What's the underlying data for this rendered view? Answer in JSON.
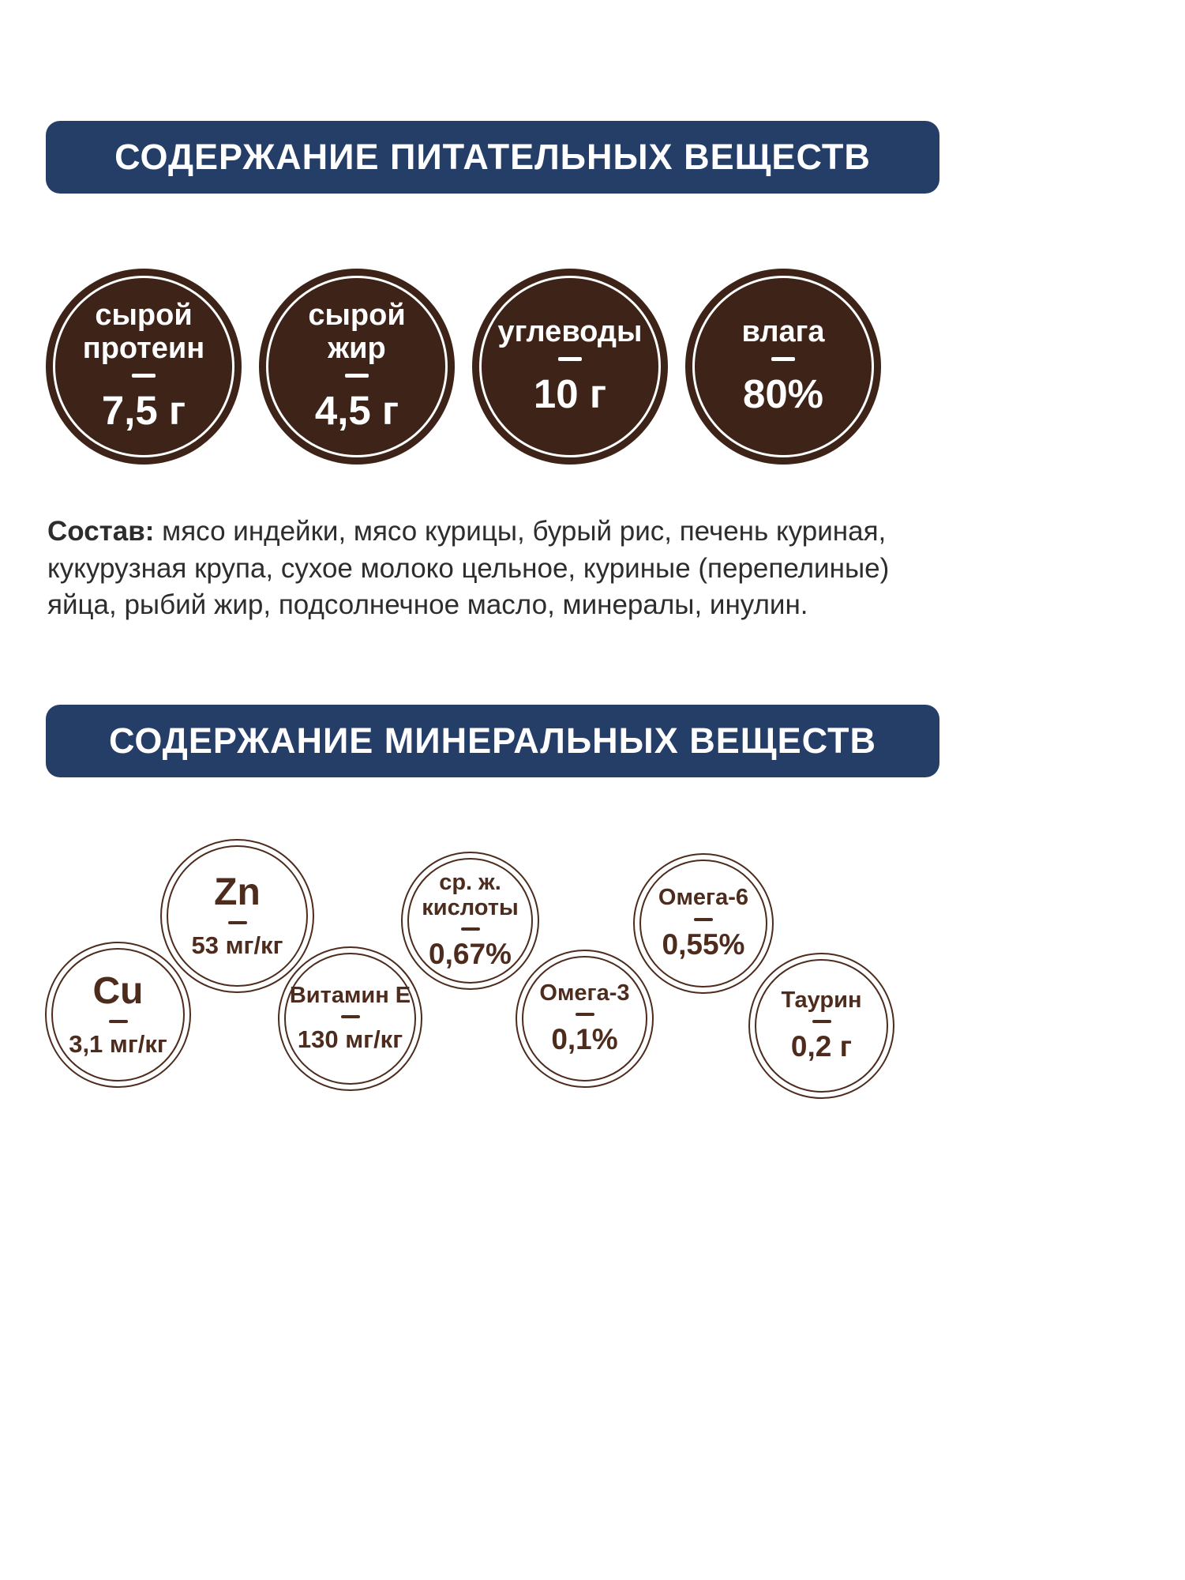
{
  "headers": {
    "nutrients": "СОДЕРЖАНИЕ ПИТАТЕЛЬНЫХ ВЕЩЕСТВ",
    "minerals": "СОДЕРЖАНИЕ МИНЕРАЛЬНЫХ ВЕЩЕСТВ"
  },
  "nutrients": [
    {
      "line1": "сырой",
      "line2": "протеин",
      "value": "7,5 г"
    },
    {
      "line1": "сырой",
      "line2": "жир",
      "value": "4,5 г"
    },
    {
      "line1": "углеводы",
      "value": "10 г"
    },
    {
      "line1": "влага",
      "value": "80%"
    }
  ],
  "composition": {
    "label": "Состав:",
    "text": "мясо индейки, мясо курицы, бурый рис, печень куриная, кукурузная крупа, сухое молоко цельное, куриные (перепелиные) яйца, рыбий жир, подсолнечное масло, минералы, инулин."
  },
  "minerals": [
    {
      "line1": "Zn",
      "value": "53 мг/кг"
    },
    {
      "line1": "ср. ж.",
      "line2": "кислоты",
      "value": "0,67%"
    },
    {
      "line1": "Омега-6",
      "value": "0,55%"
    },
    {
      "line1": "Cu",
      "value": "3,1 мг/кг"
    },
    {
      "line1": "Витамин Е",
      "value": "130 мг/кг"
    },
    {
      "line1": "Омега-3",
      "value": "0,1%"
    },
    {
      "line1": "Таурин",
      "value": "0,2 г"
    }
  ],
  "colors": {
    "navy": "#243e68",
    "brown": "#3d2318",
    "ink": "#4d2c1e",
    "text": "#2d2d2d"
  }
}
